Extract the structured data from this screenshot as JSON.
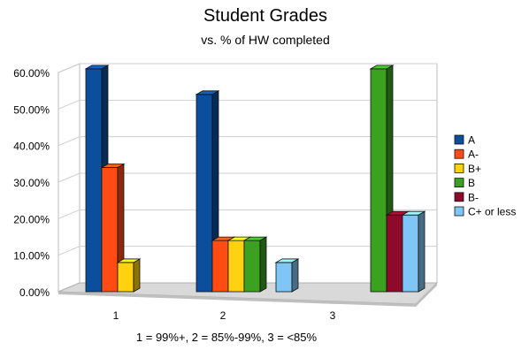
{
  "chart_data": {
    "type": "bar",
    "title": "Student Grades",
    "subtitle": "vs. % of HW completed",
    "xlabel": "1 = 99%+, 2 = 85%-99%, 3 = <85%",
    "ylabel": "",
    "categories": [
      "1",
      "2",
      "3"
    ],
    "ylim": [
      0,
      60
    ],
    "yticks": [
      "0.00%",
      "10.00%",
      "20.00%",
      "30.00%",
      "40.00%",
      "50.00%",
      "60.00%"
    ],
    "grid": true,
    "legend_position": "right",
    "series": [
      {
        "name": "A",
        "color": "#0b4f9c",
        "values": [
          61,
          54,
          0
        ]
      },
      {
        "name": "A-",
        "color": "#ff4b14",
        "values": [
          34,
          14,
          0
        ]
      },
      {
        "name": "B+",
        "color": "#ffd10f",
        "values": [
          8,
          14,
          0
        ]
      },
      {
        "name": "B",
        "color": "#3aa21f",
        "values": [
          0,
          14,
          61
        ]
      },
      {
        "name": "B-",
        "color": "#8e0a2b",
        "values": [
          0,
          0,
          21
        ]
      },
      {
        "name": "C+ or less",
        "color": "#7fc6f6",
        "values": [
          0,
          8,
          21
        ]
      }
    ]
  }
}
